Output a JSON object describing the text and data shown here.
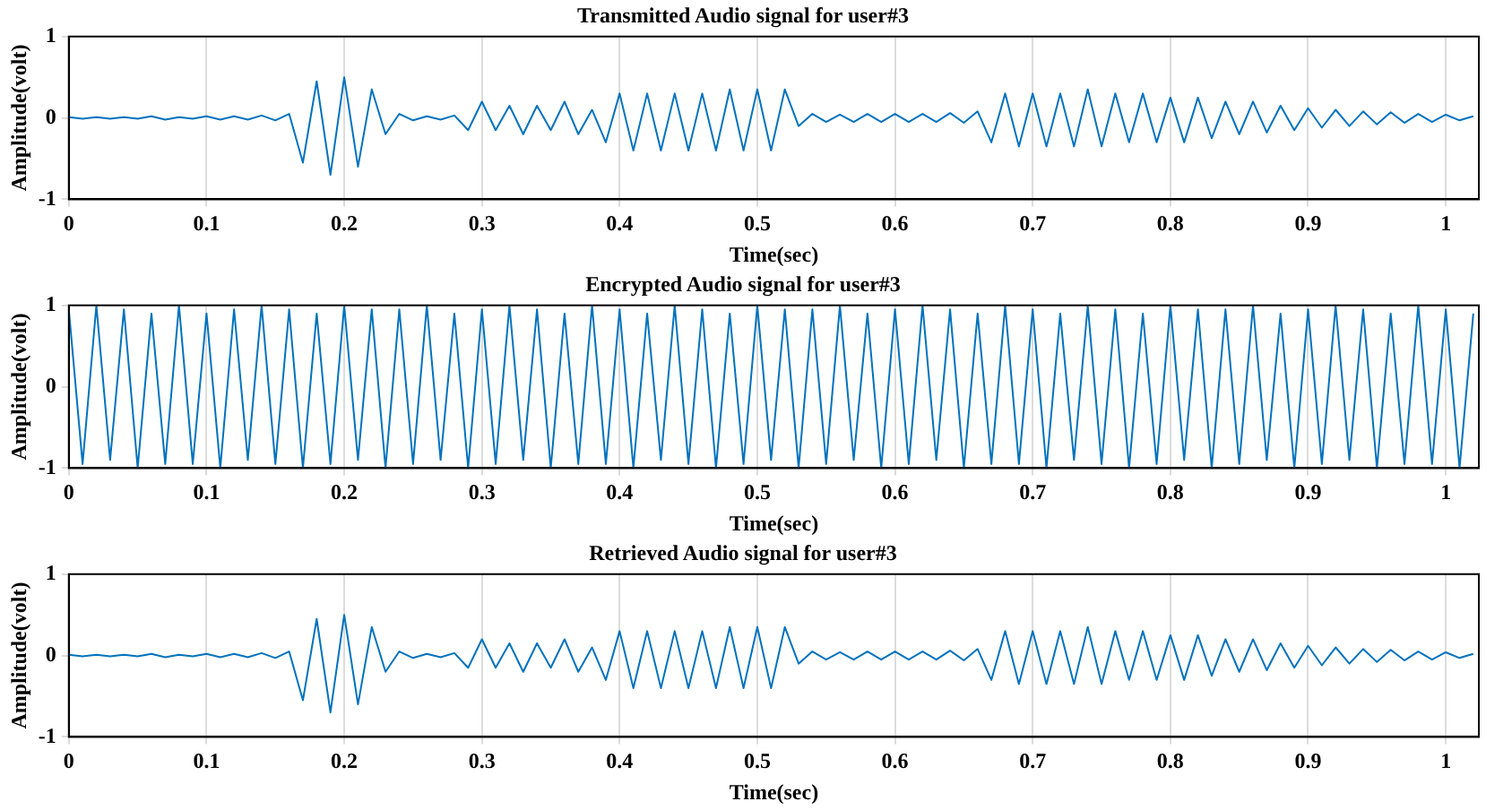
{
  "chart_data": [
    {
      "type": "line",
      "title": "Transmitted Audio signal for user#3",
      "xlabel": "Time(sec)",
      "ylabel": "Amplitude(volt)",
      "x": [
        0,
        0.01,
        0.02,
        0.03,
        0.04,
        0.05,
        0.06,
        0.07,
        0.08,
        0.09,
        0.1,
        0.11,
        0.12,
        0.13,
        0.14,
        0.15,
        0.16,
        0.17,
        0.18,
        0.19,
        0.2,
        0.21,
        0.22,
        0.23,
        0.24,
        0.25,
        0.26,
        0.27,
        0.28,
        0.29,
        0.3,
        0.31,
        0.32,
        0.33,
        0.34,
        0.35,
        0.36,
        0.37,
        0.38,
        0.39,
        0.4,
        0.41,
        0.42,
        0.43,
        0.44,
        0.45,
        0.46,
        0.47,
        0.48,
        0.49,
        0.5,
        0.51,
        0.52,
        0.53,
        0.54,
        0.55,
        0.56,
        0.57,
        0.58,
        0.59,
        0.6,
        0.61,
        0.62,
        0.63,
        0.64,
        0.65,
        0.66,
        0.67,
        0.68,
        0.69,
        0.7,
        0.71,
        0.72,
        0.73,
        0.74,
        0.75,
        0.76,
        0.77,
        0.78,
        0.79,
        0.8,
        0.81,
        0.82,
        0.83,
        0.84,
        0.85,
        0.86,
        0.87,
        0.88,
        0.89,
        0.9,
        0.91,
        0.92,
        0.93,
        0.94,
        0.95,
        0.96,
        0.97,
        0.98,
        0.99,
        1,
        1.01,
        1.02
      ],
      "series": [
        {
          "color": "#0072bd",
          "values": [
            0.01,
            -0.01,
            0.01,
            -0.01,
            0.01,
            -0.01,
            0.02,
            -0.02,
            0.01,
            -0.01,
            0.02,
            -0.02,
            0.02,
            -0.02,
            0.03,
            -0.03,
            0.05,
            -0.55,
            0.45,
            -0.7,
            0.5,
            -0.6,
            0.35,
            -0.2,
            0.05,
            -0.03,
            0.02,
            -0.02,
            0.03,
            -0.15,
            0.2,
            -0.15,
            0.15,
            -0.2,
            0.15,
            -0.15,
            0.2,
            -0.2,
            0.1,
            -0.3,
            0.3,
            -0.4,
            0.3,
            -0.4,
            0.3,
            -0.4,
            0.3,
            -0.4,
            0.35,
            -0.4,
            0.35,
            -0.4,
            0.35,
            -0.1,
            0.05,
            -0.05,
            0.04,
            -0.05,
            0.05,
            -0.05,
            0.05,
            -0.05,
            0.05,
            -0.05,
            0.06,
            -0.06,
            0.08,
            -0.3,
            0.3,
            -0.35,
            0.3,
            -0.35,
            0.3,
            -0.35,
            0.35,
            -0.35,
            0.3,
            -0.3,
            0.3,
            -0.3,
            0.25,
            -0.3,
            0.25,
            -0.25,
            0.2,
            -0.2,
            0.2,
            -0.18,
            0.15,
            -0.15,
            0.12,
            -0.12,
            0.1,
            -0.1,
            0.08,
            -0.08,
            0.07,
            -0.06,
            0.05,
            -0.05,
            0.04,
            -0.03,
            0.02
          ]
        }
      ],
      "xlim": [
        0,
        1.024
      ],
      "ylim": [
        -1,
        1
      ],
      "xticks": [
        0,
        0.1,
        0.2,
        0.3,
        0.4,
        0.5,
        0.6,
        0.7,
        0.8,
        0.9,
        1
      ],
      "yticks": [
        -1,
        0,
        1
      ],
      "grid": "x"
    },
    {
      "type": "line",
      "title": "Encrypted Audio signal for user#3",
      "xlabel": "Time(sec)",
      "ylabel": "Amplitude(volt)",
      "x": [
        0,
        0.01,
        0.02,
        0.03,
        0.04,
        0.05,
        0.06,
        0.07,
        0.08,
        0.09,
        0.1,
        0.11,
        0.12,
        0.13,
        0.14,
        0.15,
        0.16,
        0.17,
        0.18,
        0.19,
        0.2,
        0.21,
        0.22,
        0.23,
        0.24,
        0.25,
        0.26,
        0.27,
        0.28,
        0.29,
        0.3,
        0.31,
        0.32,
        0.33,
        0.34,
        0.35,
        0.36,
        0.37,
        0.38,
        0.39,
        0.4,
        0.41,
        0.42,
        0.43,
        0.44,
        0.45,
        0.46,
        0.47,
        0.48,
        0.49,
        0.5,
        0.51,
        0.52,
        0.53,
        0.54,
        0.55,
        0.56,
        0.57,
        0.58,
        0.59,
        0.6,
        0.61,
        0.62,
        0.63,
        0.64,
        0.65,
        0.66,
        0.67,
        0.68,
        0.69,
        0.7,
        0.71,
        0.72,
        0.73,
        0.74,
        0.75,
        0.76,
        0.77,
        0.78,
        0.79,
        0.8,
        0.81,
        0.82,
        0.83,
        0.84,
        0.85,
        0.86,
        0.87,
        0.88,
        0.89,
        0.9,
        0.91,
        0.92,
        0.93,
        0.94,
        0.95,
        0.96,
        0.97,
        0.98,
        0.99,
        1,
        1.01,
        1.02
      ],
      "series": [
        {
          "color": "#0072bd",
          "values": [
            0.95,
            -0.95,
            1,
            -0.9,
            0.95,
            -1,
            0.9,
            -0.95,
            1,
            -0.95,
            0.9,
            -1,
            0.95,
            -0.9,
            1,
            -0.95,
            0.95,
            -1,
            0.9,
            -0.95,
            1,
            -0.9,
            0.95,
            -1,
            0.95,
            -0.95,
            1,
            -0.9,
            0.9,
            -1,
            0.95,
            -0.95,
            1,
            -0.9,
            0.95,
            -1,
            0.9,
            -0.95,
            1,
            -0.95,
            0.95,
            -1,
            0.9,
            -0.9,
            1,
            -0.95,
            0.95,
            -1,
            0.9,
            -0.95,
            1,
            -0.9,
            0.95,
            -1,
            0.95,
            -0.95,
            1,
            -0.9,
            0.9,
            -1,
            0.95,
            -0.95,
            1,
            -0.9,
            0.95,
            -1,
            0.9,
            -0.95,
            1,
            -0.95,
            0.95,
            -1,
            0.9,
            -0.9,
            1,
            -0.95,
            0.95,
            -1,
            0.9,
            -0.95,
            1,
            -0.9,
            0.95,
            -1,
            0.95,
            -0.95,
            1,
            -0.9,
            0.9,
            -1,
            0.95,
            -0.95,
            1,
            -0.9,
            0.95,
            -1,
            0.9,
            -0.95,
            1,
            -0.95,
            0.95,
            -1,
            0.9
          ]
        }
      ],
      "xlim": [
        0,
        1.024
      ],
      "ylim": [
        -1,
        1
      ],
      "xticks": [
        0,
        0.1,
        0.2,
        0.3,
        0.4,
        0.5,
        0.6,
        0.7,
        0.8,
        0.9,
        1
      ],
      "yticks": [
        -1,
        0,
        1
      ],
      "grid": "x"
    },
    {
      "type": "line",
      "title": "Retrieved Audio signal for user#3",
      "xlabel": "Time(sec)",
      "ylabel": "Amplitude(volt)",
      "x": [
        0,
        0.01,
        0.02,
        0.03,
        0.04,
        0.05,
        0.06,
        0.07,
        0.08,
        0.09,
        0.1,
        0.11,
        0.12,
        0.13,
        0.14,
        0.15,
        0.16,
        0.17,
        0.18,
        0.19,
        0.2,
        0.21,
        0.22,
        0.23,
        0.24,
        0.25,
        0.26,
        0.27,
        0.28,
        0.29,
        0.3,
        0.31,
        0.32,
        0.33,
        0.34,
        0.35,
        0.36,
        0.37,
        0.38,
        0.39,
        0.4,
        0.41,
        0.42,
        0.43,
        0.44,
        0.45,
        0.46,
        0.47,
        0.48,
        0.49,
        0.5,
        0.51,
        0.52,
        0.53,
        0.54,
        0.55,
        0.56,
        0.57,
        0.58,
        0.59,
        0.6,
        0.61,
        0.62,
        0.63,
        0.64,
        0.65,
        0.66,
        0.67,
        0.68,
        0.69,
        0.7,
        0.71,
        0.72,
        0.73,
        0.74,
        0.75,
        0.76,
        0.77,
        0.78,
        0.79,
        0.8,
        0.81,
        0.82,
        0.83,
        0.84,
        0.85,
        0.86,
        0.87,
        0.88,
        0.89,
        0.9,
        0.91,
        0.92,
        0.93,
        0.94,
        0.95,
        0.96,
        0.97,
        0.98,
        0.99,
        1,
        1.01,
        1.02
      ],
      "series": [
        {
          "color": "#0072bd",
          "values": [
            0.01,
            -0.01,
            0.01,
            -0.01,
            0.01,
            -0.01,
            0.02,
            -0.02,
            0.01,
            -0.01,
            0.02,
            -0.02,
            0.02,
            -0.02,
            0.03,
            -0.03,
            0.05,
            -0.55,
            0.45,
            -0.7,
            0.5,
            -0.6,
            0.35,
            -0.2,
            0.05,
            -0.03,
            0.02,
            -0.02,
            0.03,
            -0.15,
            0.2,
            -0.15,
            0.15,
            -0.2,
            0.15,
            -0.15,
            0.2,
            -0.2,
            0.1,
            -0.3,
            0.3,
            -0.4,
            0.3,
            -0.4,
            0.3,
            -0.4,
            0.3,
            -0.4,
            0.35,
            -0.4,
            0.35,
            -0.4,
            0.35,
            -0.1,
            0.05,
            -0.05,
            0.04,
            -0.05,
            0.05,
            -0.05,
            0.05,
            -0.05,
            0.05,
            -0.05,
            0.06,
            -0.06,
            0.08,
            -0.3,
            0.3,
            -0.35,
            0.3,
            -0.35,
            0.3,
            -0.35,
            0.35,
            -0.35,
            0.3,
            -0.3,
            0.3,
            -0.3,
            0.25,
            -0.3,
            0.25,
            -0.25,
            0.2,
            -0.2,
            0.2,
            -0.18,
            0.15,
            -0.15,
            0.12,
            -0.12,
            0.1,
            -0.1,
            0.08,
            -0.08,
            0.07,
            -0.06,
            0.05,
            -0.05,
            0.04,
            -0.03,
            0.02
          ]
        }
      ],
      "xlim": [
        0,
        1.024
      ],
      "ylim": [
        -1,
        1
      ],
      "xticks": [
        0,
        0.1,
        0.2,
        0.3,
        0.4,
        0.5,
        0.6,
        0.7,
        0.8,
        0.9,
        1
      ],
      "yticks": [
        -1,
        0,
        1
      ],
      "grid": "x"
    }
  ]
}
